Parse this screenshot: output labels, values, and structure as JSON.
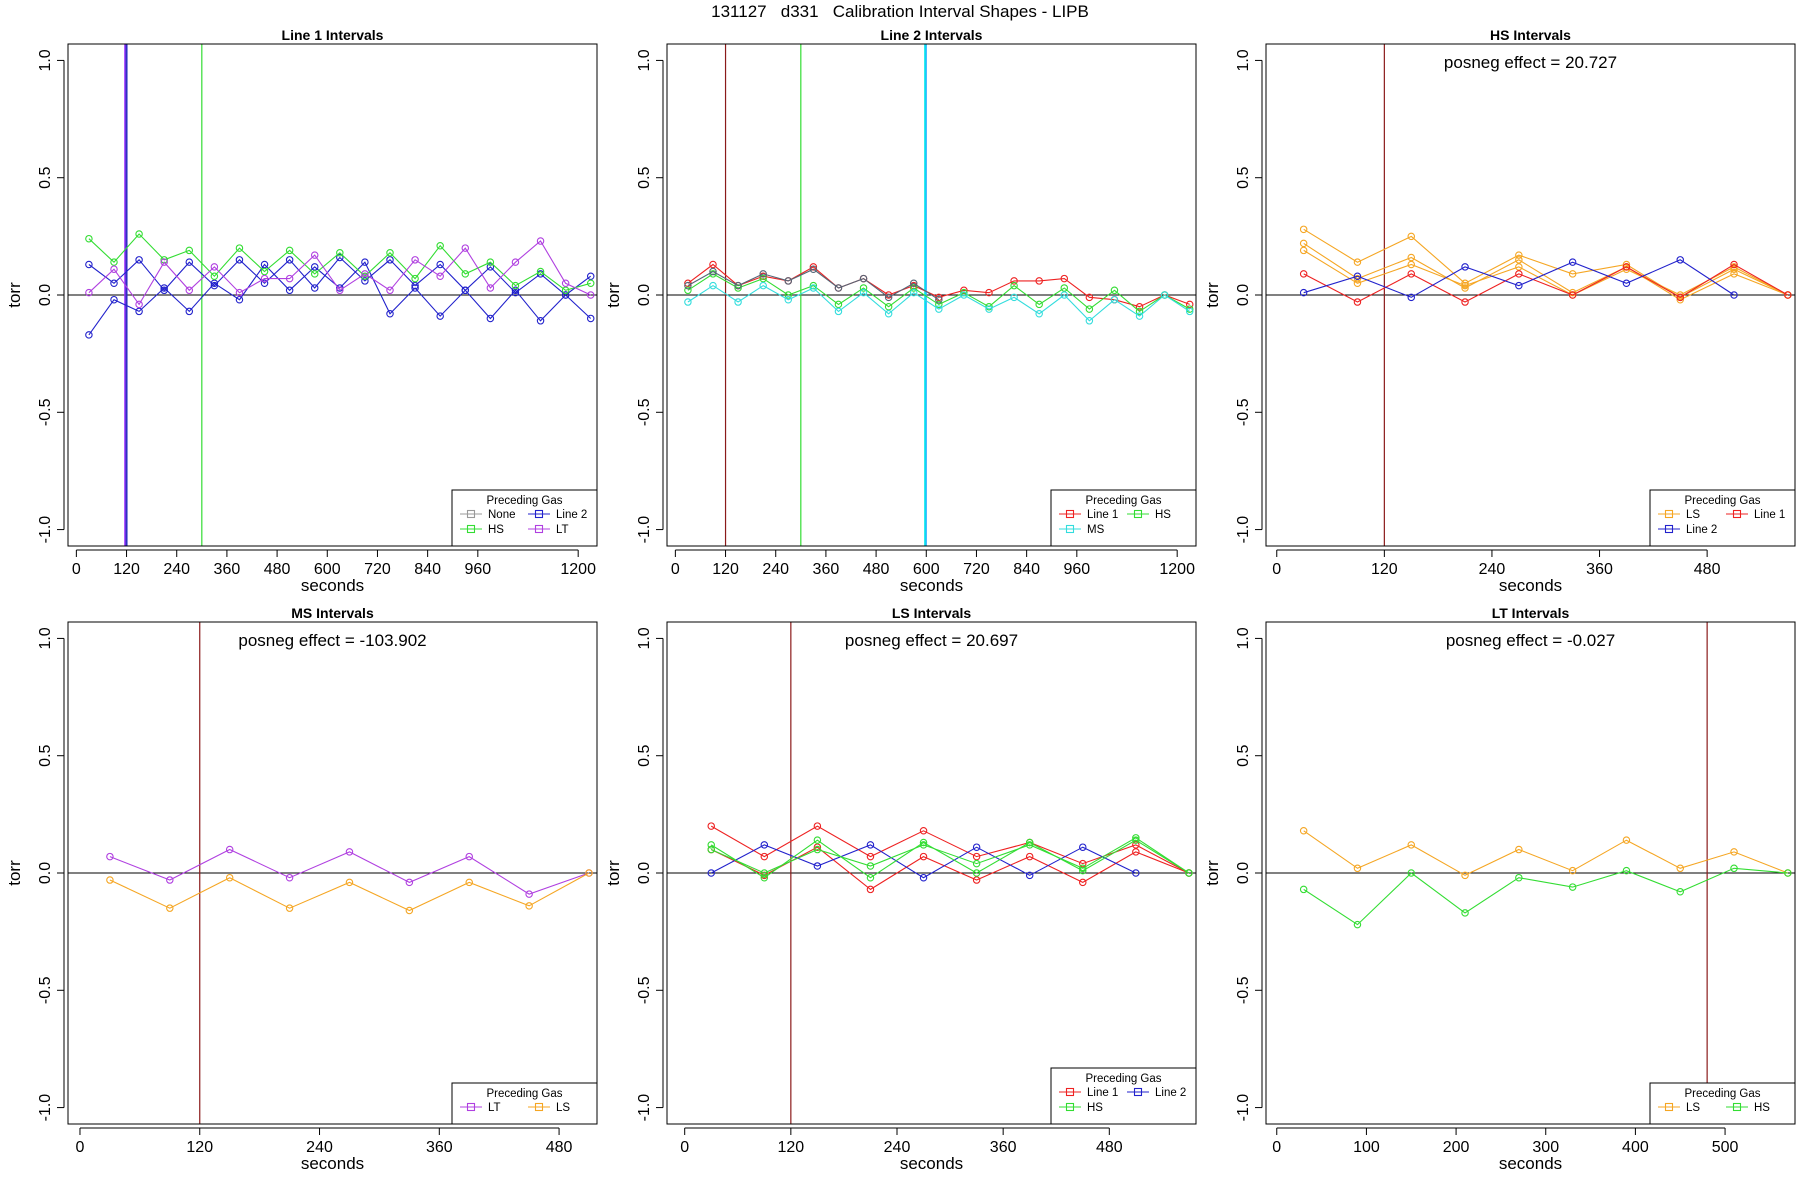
{
  "title": "131127   d331   Calibration Interval Shapes - LIPB",
  "chart_data": [
    {
      "type": "line",
      "title": "Line 1 Intervals",
      "xlabel": "seconds",
      "ylabel": "torr",
      "xlim": [
        -20,
        1245
      ],
      "ylim": [
        -1.07,
        1.07
      ],
      "xticks": [
        0,
        120,
        240,
        360,
        480,
        600,
        720,
        840,
        960,
        1200
      ],
      "yticks": [
        -1.0,
        -0.5,
        0.0,
        0.5,
        1.0
      ],
      "ytick_labels": [
        "-1.0",
        "-0.5",
        "0.0",
        "0.5",
        "1.0"
      ],
      "annotation": "",
      "vlines": [
        {
          "x": 118,
          "color": "#9b30ff",
          "width": 3
        },
        {
          "x": 120,
          "color": "#3030c0",
          "width": 2
        },
        {
          "x": 300,
          "color": "#33dd33",
          "width": 1.2
        }
      ],
      "legend": {
        "title": "Preceding Gas",
        "position": "bottom-right",
        "cols": 2
      },
      "series": [
        {
          "name": "None",
          "color": "#999999",
          "x": [],
          "y": []
        },
        {
          "name": "Line 2",
          "color": "#2222cc",
          "x": [
            30,
            90,
            150,
            210,
            270,
            330,
            390,
            450,
            510,
            570,
            630,
            690,
            750,
            810,
            870,
            930,
            990,
            1050,
            1110,
            1170,
            1230
          ],
          "y": [
            0.13,
            0.05,
            0.15,
            0.02,
            0.14,
            0.04,
            0.15,
            0.05,
            0.15,
            0.03,
            0.16,
            0.06,
            0.15,
            0.04,
            0.13,
            0.02,
            0.12,
            0.01,
            0.09,
            0.0,
            0.08
          ]
        },
        {
          "name": "Line 2",
          "color": "#2222cc",
          "legend": false,
          "x": [
            30,
            90,
            150,
            210,
            270,
            330,
            390,
            450,
            510,
            570,
            630,
            690,
            750,
            810,
            870,
            930,
            990,
            1050,
            1110,
            1170,
            1230
          ],
          "y": [
            -0.17,
            -0.02,
            -0.07,
            0.03,
            -0.07,
            0.05,
            -0.02,
            0.13,
            0.02,
            0.12,
            0.03,
            0.14,
            -0.08,
            0.03,
            -0.09,
            0.02,
            -0.1,
            0.02,
            -0.11,
            0.0,
            -0.1
          ]
        },
        {
          "name": "HS",
          "color": "#33dd33",
          "x": [
            30,
            90,
            150,
            210,
            270,
            330,
            390,
            450,
            510,
            570,
            630,
            690,
            750,
            810,
            870,
            930,
            990,
            1050,
            1110,
            1170,
            1230
          ],
          "y": [
            0.24,
            0.14,
            0.26,
            0.15,
            0.19,
            0.08,
            0.2,
            0.1,
            0.19,
            0.09,
            0.18,
            0.08,
            0.18,
            0.07,
            0.21,
            0.09,
            0.14,
            0.04,
            0.1,
            0.02,
            0.05
          ]
        },
        {
          "name": "LT",
          "color": "#b040e0",
          "x": [
            30,
            90,
            150,
            210,
            270,
            330,
            390,
            450,
            510,
            570,
            630,
            690,
            750,
            810,
            870,
            930,
            990,
            1050,
            1110,
            1170,
            1230
          ],
          "y": [
            0.01,
            0.11,
            -0.04,
            0.14,
            0.02,
            0.12,
            0.01,
            0.07,
            0.07,
            0.17,
            0.02,
            0.09,
            0.02,
            0.15,
            0.08,
            0.2,
            0.03,
            0.14,
            0.23,
            0.05,
            0.0
          ]
        }
      ]
    },
    {
      "type": "line",
      "title": "Line 2 Intervals",
      "xlabel": "seconds",
      "ylabel": "torr",
      "xlim": [
        -20,
        1245
      ],
      "ylim": [
        -1.07,
        1.07
      ],
      "xticks": [
        0,
        120,
        240,
        360,
        480,
        600,
        720,
        840,
        960,
        1200
      ],
      "yticks": [
        -1.0,
        -0.5,
        0.0,
        0.5,
        1.0
      ],
      "ytick_labels": [
        "-1.0",
        "-0.5",
        "0.0",
        "0.5",
        "1.0"
      ],
      "annotation": "",
      "vlines": [
        {
          "x": 120,
          "color": "#8b1a1a",
          "width": 1.2
        },
        {
          "x": 300,
          "color": "#33dd33",
          "width": 1.2
        },
        {
          "x": 598,
          "color": "#00e5ee",
          "width": 2.5
        },
        {
          "x": 600,
          "color": "#33aaff",
          "width": 1
        }
      ],
      "legend": {
        "title": "Preceding Gas",
        "position": "bottom-right",
        "cols": 2
      },
      "series": [
        {
          "name": "Line 1",
          "color": "#ee2222",
          "x": [
            30,
            90,
            150,
            210,
            270,
            330,
            390,
            450,
            510,
            570,
            630,
            690,
            750,
            810,
            870,
            930,
            990,
            1050,
            1110,
            1170,
            1230
          ],
          "y": [
            0.05,
            0.13,
            0.04,
            0.08,
            0.06,
            0.12,
            0.03,
            0.07,
            0.0,
            0.04,
            -0.01,
            0.02,
            0.01,
            0.06,
            0.06,
            0.07,
            -0.01,
            -0.02,
            -0.05,
            0.0,
            -0.04
          ]
        },
        {
          "name": "HS",
          "color": "#33dd33",
          "x": [
            30,
            90,
            150,
            210,
            270,
            330,
            390,
            450,
            510,
            570,
            630,
            690,
            750,
            810,
            870,
            930,
            990,
            1050,
            1110,
            1170,
            1230
          ],
          "y": [
            0.02,
            0.09,
            0.03,
            0.07,
            0.0,
            0.04,
            -0.04,
            0.03,
            -0.05,
            0.03,
            -0.04,
            0.01,
            -0.05,
            0.04,
            -0.04,
            0.03,
            -0.06,
            0.02,
            -0.07,
            0.0,
            -0.06
          ]
        },
        {
          "name": "MS",
          "color": "#33dddd",
          "x": [
            30,
            90,
            150,
            210,
            270,
            330,
            390,
            450,
            510,
            570,
            630,
            690,
            750,
            810,
            870,
            930,
            990,
            1050,
            1110,
            1170,
            1230
          ],
          "y": [
            -0.03,
            0.04,
            -0.03,
            0.04,
            -0.02,
            0.03,
            -0.07,
            0.01,
            -0.08,
            0.01,
            -0.06,
            0.0,
            -0.06,
            -0.01,
            -0.08,
            0.0,
            -0.11,
            -0.02,
            -0.09,
            0.0,
            -0.07
          ]
        },
        {
          "name": "MS",
          "color": "#556677",
          "legend": false,
          "x": [
            30,
            90,
            150,
            210,
            270,
            330,
            390,
            450,
            510,
            570,
            630
          ],
          "y": [
            0.04,
            0.1,
            0.04,
            0.09,
            0.06,
            0.11,
            0.03,
            0.07,
            -0.01,
            0.05,
            -0.02
          ]
        }
      ]
    },
    {
      "type": "line",
      "title": "HS Intervals",
      "xlabel": "seconds",
      "ylabel": "torr",
      "xlim": [
        -12,
        578
      ],
      "ylim": [
        -1.07,
        1.07
      ],
      "xticks": [
        0,
        120,
        240,
        360,
        480
      ],
      "yticks": [
        -1.0,
        -0.5,
        0.0,
        0.5,
        1.0
      ],
      "ytick_labels": [
        "-1.0",
        "-0.5",
        "0.0",
        "0.5",
        "1.0"
      ],
      "annotation": "posneg effect = 20.727",
      "vlines": [
        {
          "x": 120,
          "color": "#8b1a1a",
          "width": 1.2
        }
      ],
      "legend": {
        "title": "Preceding Gas",
        "position": "bottom-right",
        "cols": 2
      },
      "series": [
        {
          "name": "LS",
          "color": "#f5a623",
          "x": [
            30,
            90,
            150,
            210,
            270,
            330,
            390,
            450,
            510,
            570
          ],
          "y": [
            0.28,
            0.14,
            0.25,
            0.05,
            0.17,
            0.09,
            0.13,
            -0.01,
            0.11,
            0.0
          ]
        },
        {
          "name": "LS",
          "color": "#f5a623",
          "legend": false,
          "x": [
            30,
            90,
            150,
            210,
            270,
            330,
            390,
            450,
            510,
            570
          ],
          "y": [
            0.22,
            0.07,
            0.16,
            0.03,
            0.15,
            0.01,
            0.12,
            -0.02,
            0.09,
            0.0
          ]
        },
        {
          "name": "LS",
          "color": "#f5a623",
          "legend": false,
          "x": [
            30,
            90,
            150,
            210,
            270,
            330,
            390,
            450,
            510,
            570
          ],
          "y": [
            0.19,
            0.05,
            0.13,
            0.04,
            0.12,
            0.0,
            0.11,
            0.0,
            0.12,
            0.0
          ]
        },
        {
          "name": "Line 1",
          "color": "#ee2222",
          "x": [
            30,
            90,
            150,
            210,
            270,
            330,
            390,
            450,
            510,
            570
          ],
          "y": [
            0.09,
            -0.03,
            0.09,
            -0.03,
            0.09,
            0.0,
            0.12,
            -0.01,
            0.13,
            0.0
          ]
        },
        {
          "name": "Line 2",
          "color": "#2222cc",
          "x": [
            30,
            90,
            150,
            210,
            270,
            330,
            390,
            450,
            510
          ],
          "y": [
            0.01,
            0.08,
            -0.01,
            0.12,
            0.04,
            0.14,
            0.05,
            0.15,
            0.0
          ]
        }
      ]
    },
    {
      "type": "line",
      "title": "MS Intervals",
      "xlabel": "seconds",
      "ylabel": "torr",
      "xlim": [
        -12,
        518
      ],
      "ylim": [
        -1.07,
        1.07
      ],
      "xticks": [
        0,
        120,
        240,
        360,
        480
      ],
      "yticks": [
        -1.0,
        -0.5,
        0.0,
        0.5,
        1.0
      ],
      "ytick_labels": [
        "-1.0",
        "-0.5",
        "0.0",
        "0.5",
        "1.0"
      ],
      "annotation": "posneg effect = -103.902",
      "vlines": [
        {
          "x": 120,
          "color": "#8b1a1a",
          "width": 1.2
        }
      ],
      "legend": {
        "title": "Preceding Gas",
        "position": "bottom-right",
        "cols": 2
      },
      "series": [
        {
          "name": "LT",
          "color": "#b040e0",
          "x": [
            30,
            90,
            150,
            210,
            270,
            330,
            390,
            450,
            510
          ],
          "y": [
            0.07,
            -0.03,
            0.1,
            -0.02,
            0.09,
            -0.04,
            0.07,
            -0.09,
            0.0
          ]
        },
        {
          "name": "LS",
          "color": "#f5a623",
          "x": [
            30,
            90,
            150,
            210,
            270,
            330,
            390,
            450,
            510
          ],
          "y": [
            -0.03,
            -0.15,
            -0.02,
            -0.15,
            -0.04,
            -0.16,
            -0.04,
            -0.14,
            0.0
          ]
        }
      ]
    },
    {
      "type": "line",
      "title": "LS Intervals",
      "xlabel": "seconds",
      "ylabel": "torr",
      "xlim": [
        -20,
        578
      ],
      "ylim": [
        -1.07,
        1.07
      ],
      "xticks": [
        0,
        120,
        240,
        360,
        480
      ],
      "yticks": [
        -1.0,
        -0.5,
        0.0,
        0.5,
        1.0
      ],
      "ytick_labels": [
        "-1.0",
        "-0.5",
        "0.0",
        "0.5",
        "1.0"
      ],
      "annotation": "posneg effect = 20.697",
      "vlines": [
        {
          "x": 120,
          "color": "#8b1a1a",
          "width": 1.2
        }
      ],
      "legend": {
        "title": "Preceding Gas",
        "position": "bottom-right",
        "cols": 2
      },
      "series": [
        {
          "name": "Line 1",
          "color": "#ee2222",
          "x": [
            30,
            90,
            150,
            210,
            270,
            330,
            390,
            450,
            510,
            570
          ],
          "y": [
            0.2,
            0.07,
            0.2,
            0.07,
            0.18,
            0.07,
            0.13,
            0.04,
            0.12,
            0.0
          ]
        },
        {
          "name": "Line 1",
          "color": "#ee2222",
          "legend": false,
          "x": [
            30,
            90,
            150,
            210,
            270,
            330,
            390,
            450,
            510,
            570
          ],
          "y": [
            0.1,
            -0.01,
            0.11,
            -0.07,
            0.07,
            -0.03,
            0.07,
            -0.04,
            0.09,
            0.0
          ]
        },
        {
          "name": "Line 2",
          "color": "#2222cc",
          "x": [
            30,
            90,
            150,
            210,
            270,
            330,
            390,
            450,
            510
          ],
          "y": [
            0.0,
            0.12,
            0.03,
            0.12,
            -0.02,
            0.11,
            -0.01,
            0.11,
            0.0
          ]
        },
        {
          "name": "HS",
          "color": "#33dd33",
          "x": [
            30,
            90,
            150,
            210,
            270,
            330,
            390,
            450,
            510,
            570
          ],
          "y": [
            0.12,
            -0.02,
            0.14,
            -0.02,
            0.13,
            0.0,
            0.13,
            0.01,
            0.14,
            0.0
          ]
        },
        {
          "name": "HS",
          "color": "#33dd33",
          "legend": false,
          "x": [
            30,
            90,
            150,
            210,
            270,
            330,
            390,
            450,
            510,
            570
          ],
          "y": [
            0.1,
            0.0,
            0.1,
            0.03,
            0.12,
            0.04,
            0.12,
            0.02,
            0.15,
            0.0
          ]
        }
      ]
    },
    {
      "type": "line",
      "title": "LT Intervals",
      "xlabel": "seconds",
      "ylabel": "torr",
      "xlim": [
        -12,
        578
      ],
      "ylim": [
        -1.07,
        1.07
      ],
      "xticks": [
        0,
        100,
        200,
        300,
        400,
        500
      ],
      "yticks": [
        -1.0,
        -0.5,
        0.0,
        0.5,
        1.0
      ],
      "ytick_labels": [
        "-1.0",
        "-0.5",
        "0.0",
        "0.5",
        "1.0"
      ],
      "annotation": "posneg effect = -0.027",
      "vlines": [
        {
          "x": 480,
          "color": "#8b1a1a",
          "width": 1.2
        }
      ],
      "legend": {
        "title": "Preceding Gas",
        "position": "bottom-right",
        "cols": 2
      },
      "series": [
        {
          "name": "LS",
          "color": "#f5a623",
          "x": [
            30,
            90,
            150,
            210,
            270,
            330,
            390,
            450,
            510,
            570
          ],
          "y": [
            0.18,
            0.02,
            0.12,
            -0.01,
            0.1,
            0.01,
            0.14,
            0.02,
            0.09,
            0.0
          ]
        },
        {
          "name": "HS",
          "color": "#33dd33",
          "x": [
            30,
            90,
            150,
            210,
            270,
            330,
            390,
            450,
            510,
            570
          ],
          "y": [
            -0.07,
            -0.22,
            0.0,
            -0.17,
            -0.02,
            -0.06,
            0.01,
            -0.08,
            0.02,
            0.0
          ]
        }
      ]
    }
  ]
}
